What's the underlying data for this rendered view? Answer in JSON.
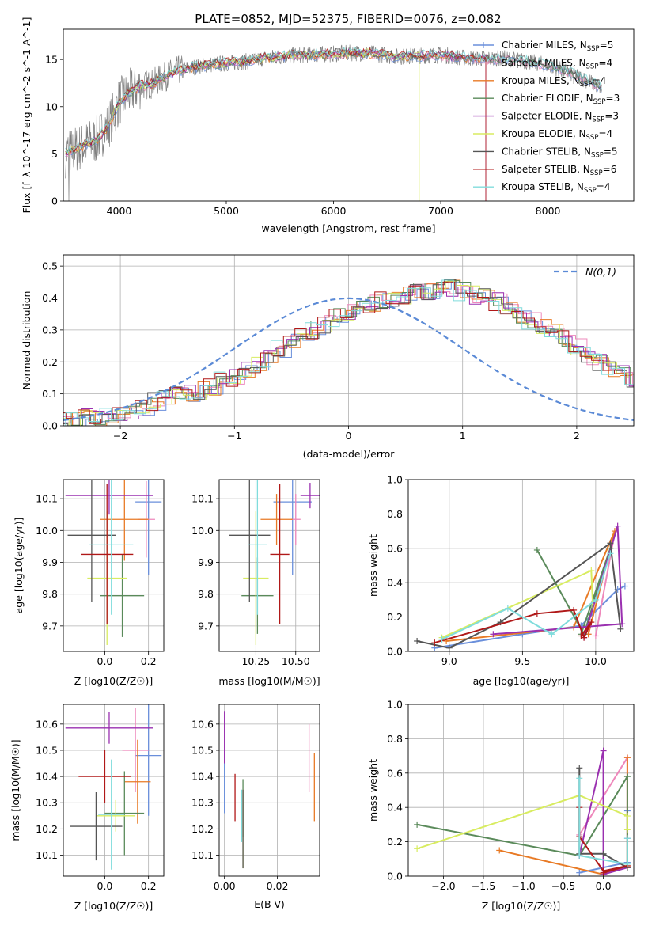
{
  "figure": {
    "title": "PLATE=0852, MJD=52375, FIBERID=0076, z=0.082"
  },
  "models": [
    {
      "name": "Chabrier MILES",
      "nssp": "5",
      "color": "#6a8fdb"
    },
    {
      "name": "Salpeter MILES",
      "nssp": "4",
      "color": "#ee88bb"
    },
    {
      "name": "Kroupa MILES",
      "nssp": "4",
      "color": "#e87a25"
    },
    {
      "name": "Chabrier ELODIE",
      "nssp": "3",
      "color": "#5a8a5a"
    },
    {
      "name": "Salpeter ELODIE",
      "nssp": "3",
      "color": "#9a30b0"
    },
    {
      "name": "Kroupa ELODIE",
      "nssp": "4",
      "color": "#d8ec60"
    },
    {
      "name": "Chabrier STELIB",
      "nssp": "5",
      "color": "#555555"
    },
    {
      "name": "Salpeter STELIB",
      "nssp": "6",
      "color": "#b01818"
    },
    {
      "name": "Kroupa STELIB",
      "nssp": "4",
      "color": "#80dcdc"
    }
  ],
  "chart_data": [
    {
      "id": "spectrum",
      "type": "line",
      "xlabel": "wavelength [Angstrom, rest frame]",
      "ylabel": "Flux [f_λ 10^-17 erg cm^-2 s^-1 A^-1]",
      "xlim": [
        3480,
        8800
      ],
      "ylim": [
        0,
        18.2
      ],
      "xticks": [
        4000,
        5000,
        6000,
        7000,
        8000
      ],
      "yticks": [
        0,
        5,
        10,
        15
      ],
      "data_series": "observed spectrum",
      "data_color": "#808080",
      "continuum_x": [
        3500,
        3600,
        3700,
        3800,
        3900,
        4000,
        4100,
        4200,
        4300,
        4400,
        4500,
        4600,
        4800,
        5000,
        5200,
        5400,
        5600,
        5800,
        6000,
        6200,
        6400,
        6600,
        6800,
        7000,
        7200,
        7400,
        7600,
        7800,
        8000,
        8200,
        8400,
        8500
      ],
      "continuum_y": [
        5.0,
        5.5,
        6.0,
        6.6,
        8.0,
        10.5,
        11.5,
        12.2,
        12.4,
        13.0,
        13.6,
        14.0,
        14.4,
        14.6,
        14.8,
        15.2,
        15.4,
        15.5,
        15.6,
        15.7,
        15.6,
        15.3,
        15.4,
        15.5,
        15.2,
        15.1,
        15.1,
        14.8,
        14.4,
        13.6,
        12.6,
        12.0
      ],
      "grid": false,
      "legend_position": "right"
    },
    {
      "id": "residuals",
      "type": "histogram",
      "xlabel": "(data-model)/error",
      "ylabel": "Normed distribution",
      "xlim": [
        -2.5,
        2.5
      ],
      "ylim": [
        0,
        0.535
      ],
      "xticks": [
        -2,
        -1,
        0,
        1,
        2
      ],
      "yticks": [
        0.0,
        0.1,
        0.2,
        0.3,
        0.4,
        0.5
      ],
      "bin_width": 0.1,
      "bin_start": -2.5,
      "envelope": [
        0.02,
        0.02,
        0.025,
        0.03,
        0.035,
        0.04,
        0.05,
        0.06,
        0.075,
        0.085,
        0.095,
        0.1,
        0.11,
        0.125,
        0.14,
        0.15,
        0.17,
        0.19,
        0.21,
        0.24,
        0.26,
        0.28,
        0.3,
        0.32,
        0.34,
        0.36,
        0.37,
        0.38,
        0.39,
        0.4,
        0.41,
        0.42,
        0.42,
        0.43,
        0.43,
        0.42,
        0.41,
        0.4,
        0.39,
        0.37,
        0.35,
        0.33,
        0.31,
        0.29,
        0.27,
        0.25,
        0.22,
        0.2,
        0.18,
        0.16,
        0.14,
        0.12,
        0.1,
        0.09,
        0.08,
        0.07,
        0.055,
        0.045,
        0.04,
        0.035,
        0.03
      ],
      "gaussian_label": "N(0,1)",
      "gaussian_color": "#5b8ad6",
      "grid": true,
      "legend_position": "top-right"
    },
    {
      "id": "age_vs_Z",
      "type": "errorbar",
      "xlabel": "Z [log10(Z/Z☉)]",
      "ylabel": "age [log10(age/yr)]",
      "xlim": [
        -0.19,
        0.27
      ],
      "ylim": [
        9.62,
        10.16
      ],
      "xticks": [
        0.0,
        0.2
      ],
      "yticks": [
        9.7,
        9.8,
        9.9,
        10.0,
        10.1
      ],
      "points": [
        {
          "model": 0,
          "x": 0.2,
          "y": 10.09,
          "xerr": 0.06,
          "yerr": 0.23
        },
        {
          "model": 1,
          "x": 0.19,
          "y": 10.035,
          "xerr": 0.04,
          "yerr": 0.12
        },
        {
          "model": 2,
          "x": 0.09,
          "y": 10.035,
          "xerr": 0.11,
          "yerr": 0.13
        },
        {
          "model": 3,
          "x": 0.08,
          "y": 9.795,
          "xerr": 0.1,
          "yerr": 0.13
        },
        {
          "model": 4,
          "x": 0.02,
          "y": 10.11,
          "xerr": 0.2,
          "yerr": 0.06
        },
        {
          "model": 5,
          "x": 0.01,
          "y": 9.85,
          "xerr": 0.09,
          "yerr": 0.21
        },
        {
          "model": 6,
          "x": -0.06,
          "y": 9.985,
          "xerr": 0.11,
          "yerr": 0.21
        },
        {
          "model": 7,
          "x": 0.01,
          "y": 9.925,
          "xerr": 0.12,
          "yerr": 0.22
        },
        {
          "model": 8,
          "x": 0.03,
          "y": 9.955,
          "xerr": 0.1,
          "yerr": 0.22
        }
      ]
    },
    {
      "id": "age_vs_mass",
      "type": "errorbar",
      "xlabel": "mass [log10(M/M☉)]",
      "ylabel": "",
      "xlim": [
        10.02,
        10.65
      ],
      "ylim": [
        9.62,
        10.16
      ],
      "xticks": [
        10.25,
        10.5
      ],
      "yticks": [
        9.7,
        9.8,
        9.9,
        10.0,
        10.1
      ],
      "points": [
        {
          "model": 0,
          "x": 10.48,
          "y": 10.09,
          "xerr": 0.12,
          "yerr": 0.23
        },
        {
          "model": 1,
          "x": 10.5,
          "y": 10.035,
          "xerr": 0.03,
          "yerr": 0.08
        },
        {
          "model": 2,
          "x": 10.38,
          "y": 10.035,
          "xerr": 0.1,
          "yerr": 0.08
        },
        {
          "model": 3,
          "x": 10.26,
          "y": 9.795,
          "xerr": 0.1,
          "yerr": 0.12
        },
        {
          "model": 4,
          "x": 10.59,
          "y": 10.11,
          "xerr": 0.06,
          "yerr": 0.04
        },
        {
          "model": 5,
          "x": 10.25,
          "y": 9.85,
          "xerr": 0.08,
          "yerr": 0.21
        },
        {
          "model": 6,
          "x": 10.21,
          "y": 9.985,
          "xerr": 0.13,
          "yerr": 0.21
        },
        {
          "model": 7,
          "x": 10.4,
          "y": 9.925,
          "xerr": 0.06,
          "yerr": 0.22
        },
        {
          "model": 8,
          "x": 10.26,
          "y": 9.955,
          "xerr": 0.06,
          "yerr": 0.22
        }
      ]
    },
    {
      "id": "weights_vs_age",
      "type": "line",
      "xlabel": "age [log10(age/yr)]",
      "ylabel": "mass weight",
      "xlim": [
        8.72,
        10.26
      ],
      "ylim": [
        0,
        1.0
      ],
      "xticks": [
        9.0,
        9.5,
        10.0
      ],
      "yticks": [
        0.0,
        0.2,
        0.4,
        0.6,
        0.8,
        1.0
      ],
      "grid": true,
      "series": [
        {
          "model": 0,
          "x": [
            8.9,
            9.5,
            9.9,
            10.15,
            10.2
          ],
          "y": [
            0.02,
            0.1,
            0.15,
            0.36,
            0.38
          ]
        },
        {
          "model": 1,
          "x": [
            9.95,
            10.13,
            10.0
          ],
          "y": [
            0.1,
            0.69,
            0.09
          ]
        },
        {
          "model": 2,
          "x": [
            8.98,
            9.85,
            10.13,
            9.95
          ],
          "y": [
            0.06,
            0.14,
            0.7,
            0.1
          ]
        },
        {
          "model": 3,
          "x": [
            9.6,
            9.92,
            10.1,
            9.9
          ],
          "y": [
            0.59,
            0.1,
            0.6,
            0.1
          ]
        },
        {
          "model": 4,
          "x": [
            9.92,
            10.15,
            10.18,
            9.3
          ],
          "y": [
            0.08,
            0.73,
            0.16,
            0.1
          ]
        },
        {
          "model": 5,
          "x": [
            8.95,
            9.97,
            9.98
          ],
          "y": [
            0.08,
            0.47,
            0.27
          ]
        },
        {
          "model": 6,
          "x": [
            8.78,
            9.0,
            9.35,
            10.1,
            10.17
          ],
          "y": [
            0.06,
            0.02,
            0.17,
            0.63,
            0.13
          ]
        },
        {
          "model": 7,
          "x": [
            8.9,
            9.6,
            9.85,
            9.92,
            9.97,
            9.9
          ],
          "y": [
            0.05,
            0.22,
            0.24,
            0.08,
            0.17,
            0.09
          ]
        },
        {
          "model": 8,
          "x": [
            8.95,
            9.4,
            9.7,
            10.0,
            10.1
          ],
          "y": [
            0.07,
            0.25,
            0.1,
            0.3,
            0.57
          ]
        }
      ]
    },
    {
      "id": "mass_vs_Z",
      "type": "errorbar",
      "xlabel": "Z [log10(Z/Z☉)]",
      "ylabel": "mass [log10(M/M☉)]",
      "xlim": [
        -0.19,
        0.27
      ],
      "ylim": [
        10.02,
        10.675
      ],
      "xticks": [
        0.0,
        0.2
      ],
      "yticks": [
        10.1,
        10.2,
        10.3,
        10.4,
        10.5,
        10.6
      ],
      "points": [
        {
          "model": 0,
          "x": 0.2,
          "y": 10.48,
          "xerr": 0.06,
          "yerr": 0.23
        },
        {
          "model": 1,
          "x": 0.14,
          "y": 10.5,
          "xerr": 0.06,
          "yerr": 0.16
        },
        {
          "model": 2,
          "x": 0.15,
          "y": 10.38,
          "xerr": 0.06,
          "yerr": 0.16
        },
        {
          "model": 3,
          "x": 0.09,
          "y": 10.26,
          "xerr": 0.09,
          "yerr": 0.16
        },
        {
          "model": 4,
          "x": 0.02,
          "y": 10.585,
          "xerr": 0.2,
          "yerr": 0.06
        },
        {
          "model": 5,
          "x": 0.05,
          "y": 10.25,
          "xerr": 0.09,
          "yerr": 0.06
        },
        {
          "model": 6,
          "x": -0.04,
          "y": 10.21,
          "xerr": 0.12,
          "yerr": 0.13
        },
        {
          "model": 7,
          "x": 0.0,
          "y": 10.4,
          "xerr": 0.12,
          "yerr": 0.1
        },
        {
          "model": 8,
          "x": 0.03,
          "y": 10.255,
          "xerr": 0.06,
          "yerr": 0.21
        }
      ]
    },
    {
      "id": "mass_vs_ebv",
      "type": "errorbar",
      "xlabel": "E(B-V)",
      "ylabel": "",
      "xlim": [
        -0.002,
        0.036
      ],
      "ylim": [
        10.02,
        10.675
      ],
      "xticks": [
        0.0,
        0.02
      ],
      "yticks": [
        10.1,
        10.2,
        10.3,
        10.4,
        10.5,
        10.6
      ],
      "points": [
        {
          "model": 0,
          "x": 0.0,
          "y": 10.38,
          "xerr": 0.0,
          "yerr": 0.12
        },
        {
          "model": 1,
          "x": 0.032,
          "y": 10.47,
          "xerr": 0.0,
          "yerr": 0.13
        },
        {
          "model": 2,
          "x": 0.034,
          "y": 10.36,
          "xerr": 0.0,
          "yerr": 0.13
        },
        {
          "model": 3,
          "x": 0.007,
          "y": 10.28,
          "xerr": 0.0,
          "yerr": 0.11
        },
        {
          "model": 4,
          "x": 0.0,
          "y": 10.55,
          "xerr": 0.0,
          "yerr": 0.1
        },
        {
          "model": 5,
          "x": 0.007,
          "y": 10.2,
          "xerr": 0.0,
          "yerr": 0.15
        },
        {
          "model": 6,
          "x": 0.007,
          "y": 10.2,
          "xerr": 0.0,
          "yerr": 0.15
        },
        {
          "model": 7,
          "x": 0.004,
          "y": 10.32,
          "xerr": 0.0,
          "yerr": 0.09
        },
        {
          "model": 8,
          "x": 0.0065,
          "y": 10.25,
          "xerr": 0.0,
          "yerr": 0.1
        }
      ]
    },
    {
      "id": "weights_vs_Z",
      "type": "line",
      "xlabel": "Z [log10(Z/Z☉)]",
      "ylabel": "mass weight",
      "xlim": [
        -2.44,
        0.38
      ],
      "ylim": [
        0,
        1.0
      ],
      "xticks": [
        -2.0,
        -1.5,
        -1.0,
        -0.5,
        0.0
      ],
      "yticks": [
        0.0,
        0.2,
        0.4,
        0.6,
        0.8,
        1.0
      ],
      "grid": true,
      "series": [
        {
          "model": 0,
          "x": [
            -0.3,
            0.3,
            0.3,
            0.3
          ],
          "y": [
            0.02,
            0.08,
            0.22,
            0.38
          ]
        },
        {
          "model": 1,
          "x": [
            -0.3,
            0.3,
            0.3
          ],
          "y": [
            0.24,
            0.69,
            0.05
          ]
        },
        {
          "model": 2,
          "x": [
            -1.3,
            0.0,
            0.3,
            0.3
          ],
          "y": [
            0.15,
            0.01,
            0.06,
            0.69
          ]
        },
        {
          "model": 3,
          "x": [
            -2.33,
            -0.3,
            0.3,
            0.3
          ],
          "y": [
            0.3,
            0.12,
            0.58,
            0.05
          ]
        },
        {
          "model": 4,
          "x": [
            -0.3,
            0.0,
            0.0,
            0.3
          ],
          "y": [
            0.12,
            0.73,
            0.01,
            0.05
          ]
        },
        {
          "model": 5,
          "x": [
            -2.33,
            -0.3,
            0.3,
            0.3
          ],
          "y": [
            0.16,
            0.47,
            0.35,
            0.27
          ]
        },
        {
          "model": 6,
          "x": [
            -0.3,
            -0.3,
            0.0,
            0.3
          ],
          "y": [
            0.63,
            0.13,
            0.13,
            0.05
          ]
        },
        {
          "model": 7,
          "x": [
            -0.3,
            -0.3,
            0.0,
            0.3,
            0.0
          ],
          "y": [
            0.4,
            0.23,
            0.03,
            0.06,
            0.02
          ]
        },
        {
          "model": 8,
          "x": [
            -0.3,
            -0.3,
            0.3,
            0.3
          ],
          "y": [
            0.57,
            0.12,
            0.07,
            0.22
          ]
        }
      ]
    }
  ]
}
